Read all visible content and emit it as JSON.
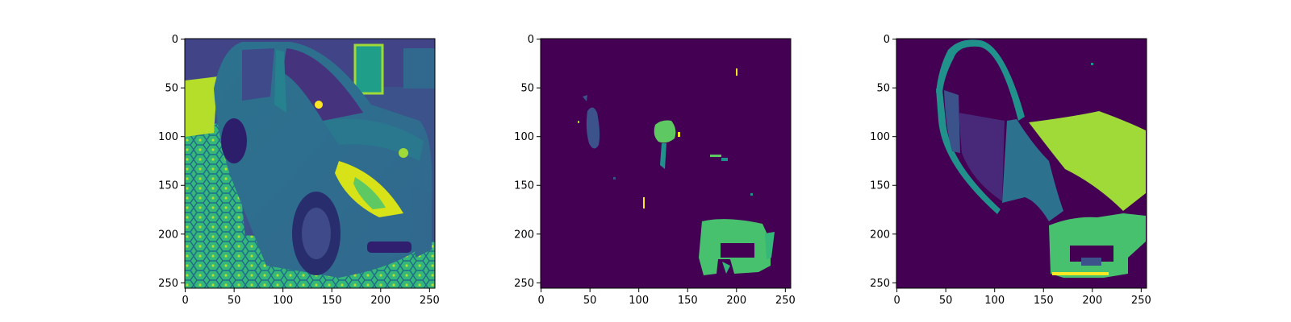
{
  "figure": {
    "panels": [
      {
        "name": "input-image-panel",
        "content": "grayscale car photo rendered in viridis colormap"
      },
      {
        "name": "prediction-mask-panel",
        "content": "sparse predicted segmentation mask"
      },
      {
        "name": "ground-truth-mask-panel",
        "content": "ground-truth car-part segmentation mask"
      }
    ],
    "x_ticks": [
      "0",
      "50",
      "100",
      "150",
      "200",
      "250"
    ],
    "y_ticks": [
      "0",
      "50",
      "100",
      "150",
      "200",
      "250"
    ],
    "axis_range": [
      0,
      256
    ],
    "colormap": {
      "background": "#440154",
      "blue_violet": "#3b528b",
      "purple": "#482878",
      "teal": "#21918c",
      "dark_teal": "#2c728e",
      "green": "#5ec962",
      "green2": "#48c16e",
      "lime": "#a0da39",
      "yellow": "#fde725"
    }
  }
}
